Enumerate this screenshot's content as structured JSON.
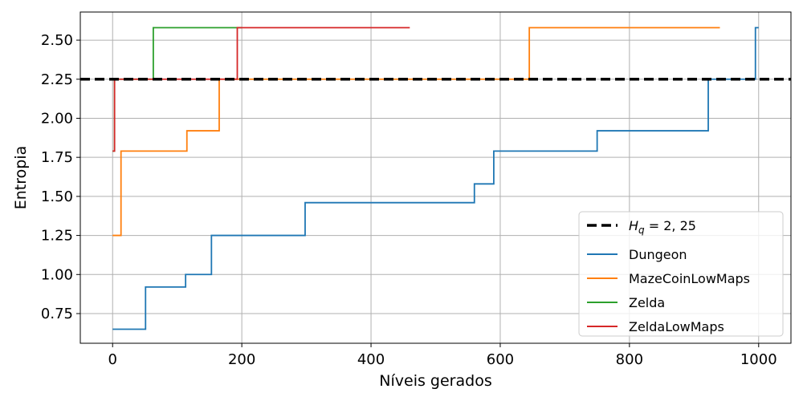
{
  "chart_data": {
    "type": "line",
    "title": "",
    "xlabel": "Níveis gerados",
    "ylabel": "Entropia",
    "xlim": [
      -50,
      1050
    ],
    "ylim": [
      0.56,
      2.68
    ],
    "xticks": [
      0,
      200,
      400,
      600,
      800,
      1000
    ],
    "yticks": [
      0.75,
      1.0,
      1.25,
      1.5,
      1.75,
      2.0,
      2.25,
      2.5
    ],
    "xtick_labels": [
      "0",
      "200",
      "400",
      "600",
      "800",
      "1000"
    ],
    "ytick_labels": [
      "0.75",
      "1.00",
      "1.25",
      "1.50",
      "1.75",
      "2.00",
      "2.25",
      "2.50"
    ],
    "grid": true,
    "legend_position": "lower-right",
    "reference_line": {
      "label": "H_q = 2,25",
      "label_main": "H",
      "label_sub": "q",
      "label_rest": " = 2, 25",
      "y": 2.25,
      "color": "#000000",
      "style": "dashed"
    },
    "series": [
      {
        "name": "Dungeon",
        "color": "#1f77b4",
        "step": true,
        "points": [
          [
            0,
            0.65
          ],
          [
            51,
            0.65
          ],
          [
            51,
            0.92
          ],
          [
            113,
            0.92
          ],
          [
            113,
            1.0
          ],
          [
            153,
            1.0
          ],
          [
            153,
            1.25
          ],
          [
            298,
            1.25
          ],
          [
            298,
            1.46
          ],
          [
            560,
            1.46
          ],
          [
            560,
            1.58
          ],
          [
            590,
            1.58
          ],
          [
            590,
            1.79
          ],
          [
            750,
            1.79
          ],
          [
            750,
            1.92
          ],
          [
            922,
            1.92
          ],
          [
            922,
            2.25
          ],
          [
            995,
            2.25
          ],
          [
            995,
            2.58
          ],
          [
            1000,
            2.58
          ]
        ]
      },
      {
        "name": "MazeCoinLowMaps",
        "color": "#ff7f0e",
        "step": true,
        "points": [
          [
            0,
            1.25
          ],
          [
            13,
            1.25
          ],
          [
            13,
            1.79
          ],
          [
            115,
            1.79
          ],
          [
            115,
            1.92
          ],
          [
            165,
            1.92
          ],
          [
            165,
            2.25
          ],
          [
            645,
            2.25
          ],
          [
            645,
            2.58
          ],
          [
            940,
            2.58
          ]
        ]
      },
      {
        "name": "Zelda",
        "color": "#2ca02c",
        "step": true,
        "points": [
          [
            0,
            1.79
          ],
          [
            3,
            1.79
          ],
          [
            3,
            2.25
          ],
          [
            63,
            2.25
          ],
          [
            63,
            2.58
          ],
          [
            200,
            2.58
          ]
        ]
      },
      {
        "name": "ZeldaLowMaps",
        "color": "#d62728",
        "step": true,
        "points": [
          [
            0,
            1.79
          ],
          [
            3,
            1.79
          ],
          [
            3,
            2.25
          ],
          [
            193,
            2.25
          ],
          [
            193,
            2.58
          ],
          [
            460,
            2.58
          ]
        ]
      }
    ]
  }
}
